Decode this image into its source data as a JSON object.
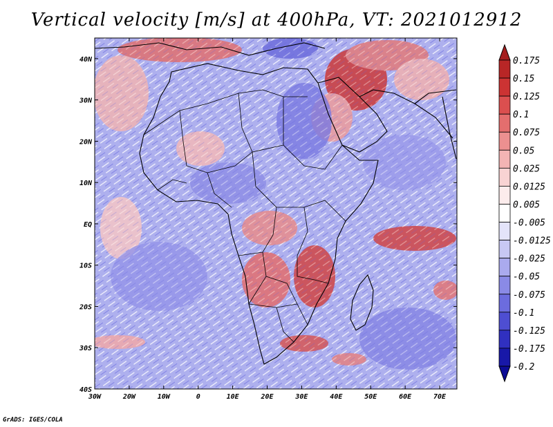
{
  "title": "Vertical velocity [m/s] at 400hPa, VT: 2021012912",
  "credit": "GrADS: IGES/COLA",
  "map": {
    "lon_range": [
      -30,
      75
    ],
    "lat_range": [
      -40,
      45
    ],
    "lat_ticks": [
      {
        "value": 40,
        "label": "40N"
      },
      {
        "value": 30,
        "label": "30N"
      },
      {
        "value": 20,
        "label": "20N"
      },
      {
        "value": 10,
        "label": "10N"
      },
      {
        "value": 0,
        "label": "EQ"
      },
      {
        "value": -10,
        "label": "10S"
      },
      {
        "value": -20,
        "label": "20S"
      },
      {
        "value": -30,
        "label": "30S"
      },
      {
        "value": -40,
        "label": "40S"
      }
    ],
    "lon_ticks": [
      {
        "value": -30,
        "label": "30W"
      },
      {
        "value": -20,
        "label": "20W"
      },
      {
        "value": -10,
        "label": "10W"
      },
      {
        "value": 0,
        "label": "0"
      },
      {
        "value": 10,
        "label": "10E"
      },
      {
        "value": 20,
        "label": "20E"
      },
      {
        "value": 30,
        "label": "30E"
      },
      {
        "value": 40,
        "label": "40E"
      },
      {
        "value": 50,
        "label": "50E"
      },
      {
        "value": 60,
        "label": "60E"
      },
      {
        "value": 70,
        "label": "70E"
      }
    ]
  },
  "colorbar": {
    "levels": [
      {
        "label": "0.175",
        "color": "#a51e1e"
      },
      {
        "label": "0.15",
        "color": "#b82626"
      },
      {
        "label": "0.125",
        "color": "#cc3333"
      },
      {
        "label": "0.1",
        "color": "#db4f4f"
      },
      {
        "label": "0.075",
        "color": "#e46e6e"
      },
      {
        "label": "0.05",
        "color": "#ec9090"
      },
      {
        "label": "0.025",
        "color": "#f3b4b4"
      },
      {
        "label": "0.0125",
        "color": "#f8d3d3"
      },
      {
        "label": "0.005",
        "color": "#fcecec"
      },
      {
        "label": "-0.005",
        "color": "#ffffff"
      },
      {
        "label": "-0.0125",
        "color": "#e4e4fa"
      },
      {
        "label": "-0.025",
        "color": "#c8c8f4"
      },
      {
        "label": "-0.05",
        "color": "#aaaaee"
      },
      {
        "label": "-0.075",
        "color": "#8a8ae6"
      },
      {
        "label": "-0.1",
        "color": "#6c6cde"
      },
      {
        "label": "-0.125",
        "color": "#4e4ed2"
      },
      {
        "label": "-0.175",
        "color": "#3030c0"
      },
      {
        "label": "-0.2",
        "color": "#1818a8"
      }
    ],
    "bottom_color": "#0c0c96"
  }
}
